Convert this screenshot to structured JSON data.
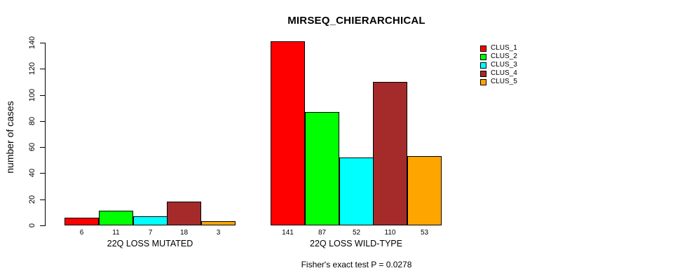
{
  "chart_data": {
    "type": "bar",
    "title": "MIRSEQ_CHIERARCHICAL",
    "ylabel": "number of cases",
    "xlabel": "",
    "ylim": [
      0,
      140
    ],
    "yticks": [
      0,
      20,
      40,
      60,
      80,
      100,
      120,
      140
    ],
    "categories": [
      "22Q LOSS MUTATED",
      "22Q LOSS WILD-TYPE"
    ],
    "series": [
      {
        "name": "CLUS_1",
        "color": "#FF0000",
        "values": [
          6,
          141
        ]
      },
      {
        "name": "CLUS_2",
        "color": "#00FF00",
        "values": [
          11,
          87
        ]
      },
      {
        "name": "CLUS_3",
        "color": "#00FFFF",
        "values": [
          7,
          52
        ]
      },
      {
        "name": "CLUS_4",
        "color": "#A52A2A",
        "values": [
          18,
          110
        ]
      },
      {
        "name": "CLUS_5",
        "color": "#FFA500",
        "values": [
          3,
          53
        ]
      }
    ],
    "bar_value_labels": [
      [
        6,
        11,
        7,
        18,
        3
      ],
      [
        141,
        87,
        52,
        110,
        53
      ]
    ],
    "legend_position": "right",
    "grid": false,
    "annotation": "Fisher's exact test P = 0.0278"
  }
}
